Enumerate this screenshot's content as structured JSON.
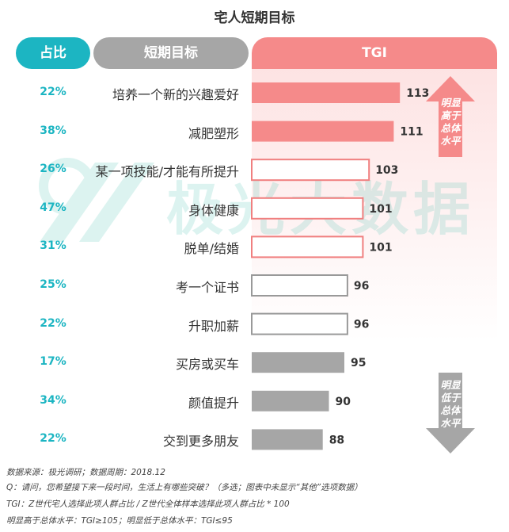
{
  "chart_data": {
    "type": "bar",
    "title": "宅人短期目标",
    "headers": {
      "share": "占比",
      "goal": "短期目标",
      "tgi": "TGI"
    },
    "categories": [
      "培养一个新的兴趣爱好",
      "减肥塑形",
      "某一项技能/才能有所提升",
      "身体健康",
      "脱单/结婚",
      "考一个证书",
      "升职加薪",
      "买房或买车",
      "颜值提升",
      "交到更多朋友"
    ],
    "shares": [
      "22%",
      "38%",
      "26%",
      "47%",
      "31%",
      "25%",
      "22%",
      "17%",
      "34%",
      "22%"
    ],
    "values": [
      113,
      111,
      103,
      101,
      101,
      96,
      96,
      95,
      90,
      88
    ],
    "styles": [
      "high-fill",
      "high-fill",
      "high-outline",
      "high-outline",
      "high-outline",
      "low-outline",
      "low-outline",
      "low-fill",
      "low-fill",
      "low-fill"
    ],
    "colors": {
      "teal": "#1cb5c2",
      "pink": "#f58a8a",
      "gray": "#a6a6a6",
      "outline_pink": "#f07f7f",
      "outline_gray": "#999999"
    },
    "annotations": {
      "up": "明显\n高于\n总体\n水平",
      "down": "明显\n低于\n总体\n水平"
    }
  },
  "watermark": "极光大数据",
  "footnotes": [
    "数据来源：极光调研；数据周期：2018.12",
    "Q：请问，您希望接下来一段时间，生活上有哪些突破？（多选；图表中未显示“其他”选项数据）",
    "TGI：Z世代宅人选择此项人群占比 / Z世代全体样本选择此项人群占比 * 100",
    "明显高于总体水平：TGI≥105；明显低于总体水平：TGI≤95"
  ]
}
